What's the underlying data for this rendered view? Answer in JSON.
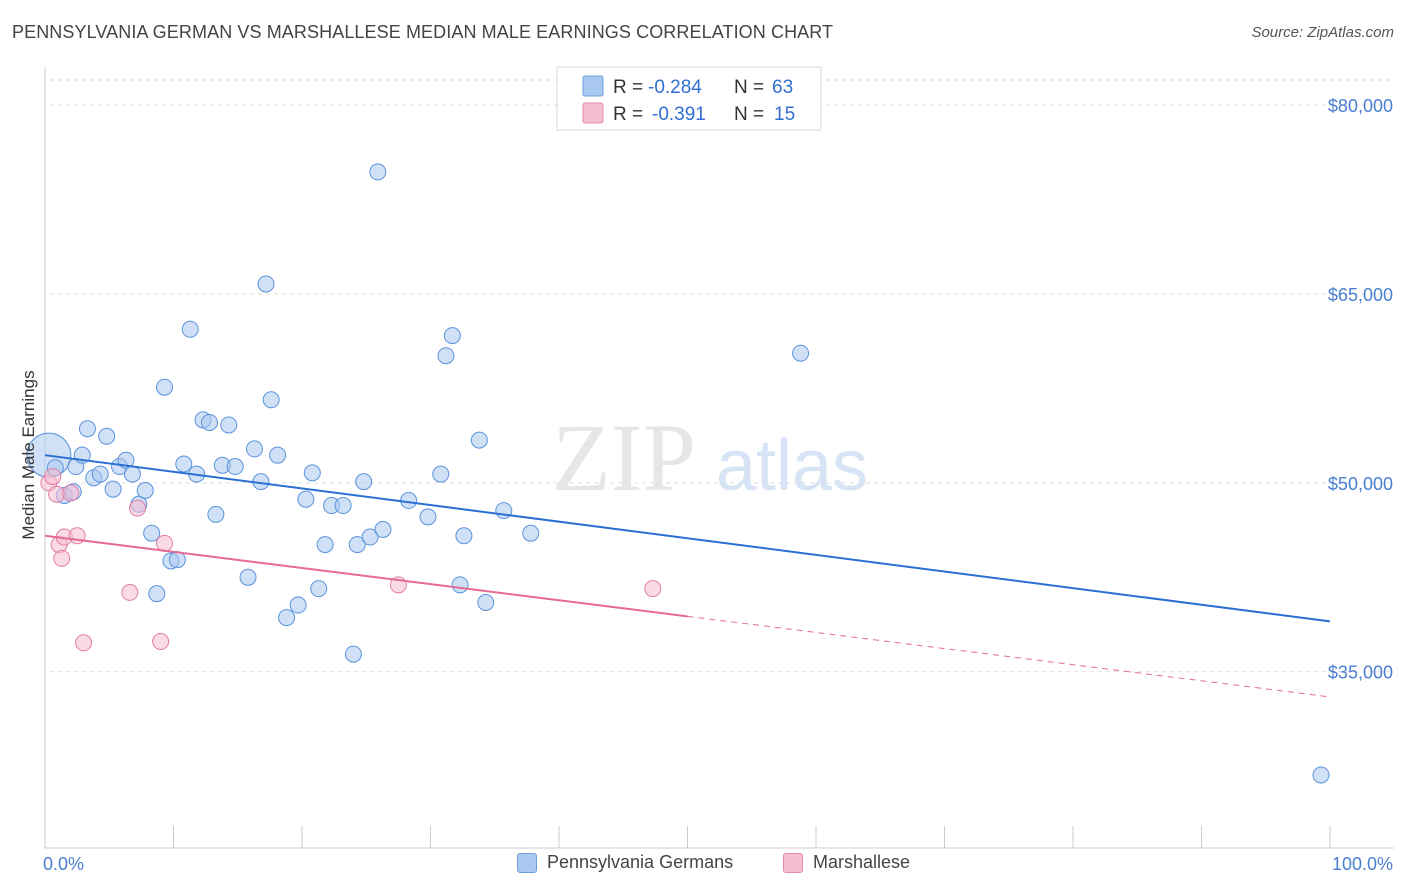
{
  "header": {
    "title": "PENNSYLVANIA GERMAN VS MARSHALLESE MEDIAN MALE EARNINGS CORRELATION CHART",
    "source": "Source: ZipAtlas.com"
  },
  "watermark": {
    "zip": "ZIP",
    "atlas": "atlas"
  },
  "stats_legend": [
    {
      "r_label": "R =",
      "r_value": "-0.284",
      "n_label": "N =",
      "n_value": "63",
      "color": "#a9c8f0",
      "edge": "#6a9fe0"
    },
    {
      "r_label": "R =",
      "r_value": "-0.391",
      "n_label": "N =",
      "n_value": "15",
      "color": "#f6bcd0",
      "edge": "#e68aaa"
    }
  ],
  "colors": {
    "blue_line": "#2a6fd4",
    "pink_line": "#e56a95",
    "axis_text": "#4a7fd0",
    "grid": "#dddddd"
  },
  "chart_data": {
    "type": "scatter",
    "title": "PENNSYLVANIA GERMAN VS MARSHALLESE MEDIAN MALE EARNINGS CORRELATION CHART",
    "xlabel": "",
    "ylabel": "Median Male Earnings",
    "xlim": [
      0,
      100
    ],
    "ylim": [
      21000,
      82000
    ],
    "x_tick_labels": [
      {
        "value": 0,
        "label": "0.0%"
      },
      {
        "value": 100,
        "label": "100.0%"
      }
    ],
    "y_tick_labels": [
      {
        "value": 35000,
        "label": "$35,000"
      },
      {
        "value": 50000,
        "label": "$50,000"
      },
      {
        "value": 65000,
        "label": "$65,000"
      },
      {
        "value": 80000,
        "label": "$80,000"
      }
    ],
    "series": [
      {
        "name": "Pennsylvania Germans",
        "r": -0.284,
        "n": 63,
        "trend": {
          "x0": 0,
          "y0": 52200,
          "x1": 100,
          "y1": 39000
        },
        "points": [
          [
            0.3,
            52200
          ],
          [
            0.8,
            51200
          ],
          [
            1.5,
            49000
          ],
          [
            2.2,
            49300
          ],
          [
            2.4,
            51300
          ],
          [
            2.9,
            52200
          ],
          [
            3.3,
            54300
          ],
          [
            3.8,
            50400
          ],
          [
            4.3,
            50700
          ],
          [
            4.8,
            53700
          ],
          [
            5.3,
            49500
          ],
          [
            5.8,
            51300
          ],
          [
            6.3,
            51800
          ],
          [
            6.8,
            50700
          ],
          [
            7.3,
            48300
          ],
          [
            7.8,
            49400
          ],
          [
            8.3,
            46000
          ],
          [
            8.7,
            41200
          ],
          [
            9.3,
            57600
          ],
          [
            9.8,
            43800
          ],
          [
            10.3,
            43900
          ],
          [
            10.8,
            51500
          ],
          [
            11.3,
            62200
          ],
          [
            11.8,
            50700
          ],
          [
            12.3,
            55000
          ],
          [
            12.8,
            54800
          ],
          [
            13.3,
            47500
          ],
          [
            13.8,
            51400
          ],
          [
            14.3,
            54600
          ],
          [
            14.8,
            51300
          ],
          [
            15.8,
            42500
          ],
          [
            16.3,
            52700
          ],
          [
            16.8,
            50100
          ],
          [
            17.2,
            65800
          ],
          [
            17.6,
            56600
          ],
          [
            18.1,
            52200
          ],
          [
            18.8,
            39300
          ],
          [
            19.7,
            40300
          ],
          [
            20.3,
            48700
          ],
          [
            20.8,
            50800
          ],
          [
            21.3,
            41600
          ],
          [
            21.8,
            45100
          ],
          [
            22.3,
            48200
          ],
          [
            23.2,
            48200
          ],
          [
            24.0,
            36400
          ],
          [
            24.3,
            45100
          ],
          [
            24.8,
            50100
          ],
          [
            25.3,
            45700
          ],
          [
            25.9,
            74700
          ],
          [
            26.3,
            46300
          ],
          [
            28.3,
            48600
          ],
          [
            29.8,
            47300
          ],
          [
            30.8,
            50700
          ],
          [
            31.2,
            60100
          ],
          [
            31.7,
            61700
          ],
          [
            32.3,
            41900
          ],
          [
            32.6,
            45800
          ],
          [
            33.8,
            53400
          ],
          [
            34.3,
            40500
          ],
          [
            35.7,
            47800
          ],
          [
            37.8,
            46000
          ],
          [
            58.8,
            60300
          ],
          [
            99.3,
            26800
          ]
        ]
      },
      {
        "name": "Marshallese",
        "r": -0.391,
        "n": 15,
        "trend": {
          "x0": 0,
          "y0": 45800,
          "x1": 50,
          "y1": 39400
        },
        "trend_dashed": {
          "x0": 50,
          "y0": 39400,
          "x1": 100,
          "y1": 33000
        },
        "points": [
          [
            0.3,
            50000
          ],
          [
            0.6,
            50500
          ],
          [
            0.9,
            49100
          ],
          [
            1.1,
            45100
          ],
          [
            1.3,
            44000
          ],
          [
            1.5,
            45700
          ],
          [
            2.0,
            49200
          ],
          [
            2.5,
            45800
          ],
          [
            3.0,
            37300
          ],
          [
            6.6,
            41300
          ],
          [
            7.2,
            48000
          ],
          [
            9.0,
            37400
          ],
          [
            9.3,
            45200
          ],
          [
            27.5,
            41900
          ],
          [
            47.3,
            41600
          ]
        ]
      }
    ]
  },
  "bottom_legend": [
    {
      "label": "Pennsylvania Germans",
      "color": "#a9c8f0",
      "edge": "#6a9fe0"
    },
    {
      "label": "Marshallese",
      "color": "#f6bcd0",
      "edge": "#e68aaa"
    }
  ]
}
